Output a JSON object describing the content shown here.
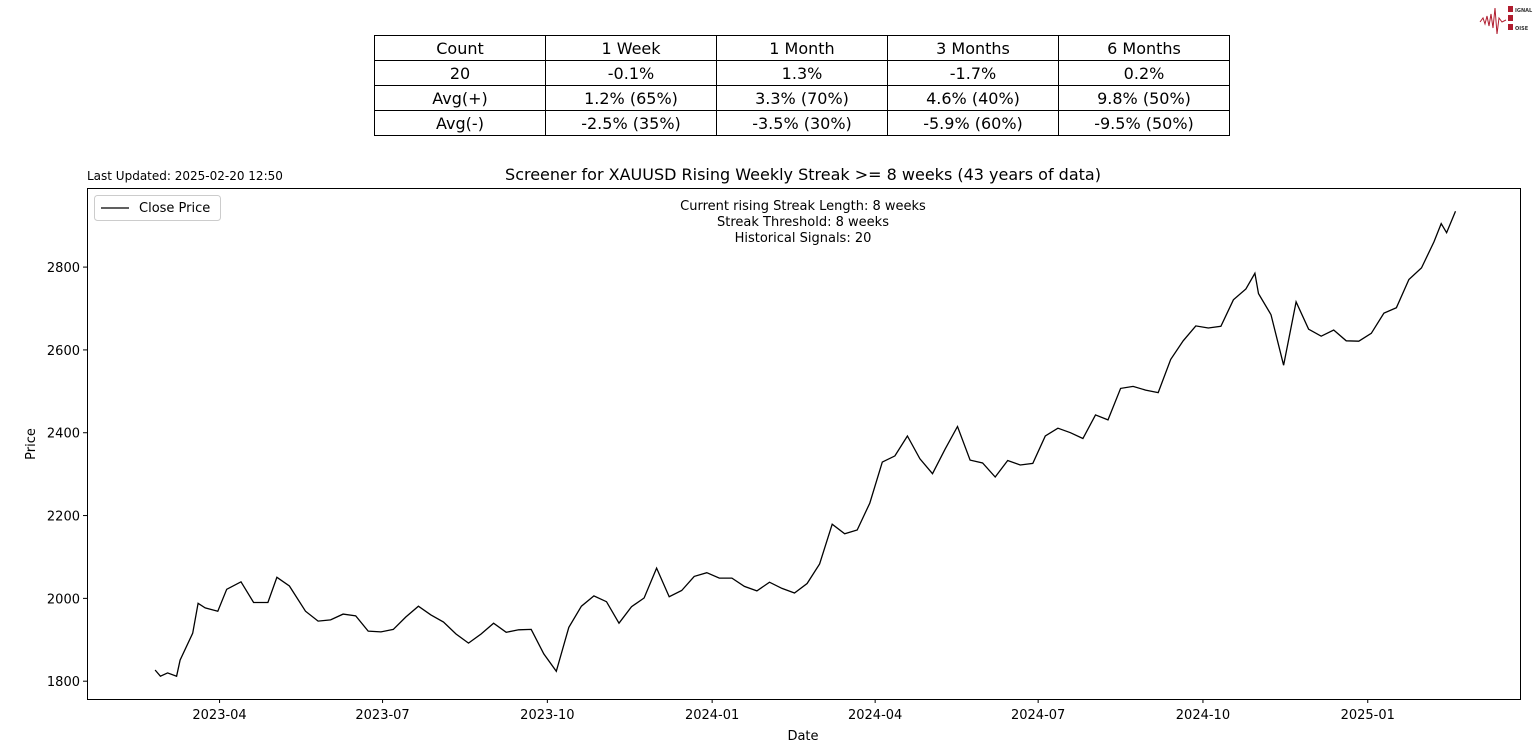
{
  "logo": {
    "text": "SIGNAL 2 NOISE",
    "color": "#b01c2e"
  },
  "table": {
    "rows": [
      [
        "Count",
        "1 Week",
        "1 Month",
        "3 Months",
        "6 Months"
      ],
      [
        "20",
        "-0.1%",
        "1.3%",
        "-1.7%",
        "0.2%"
      ],
      [
        "Avg(+)",
        "1.2% (65%)",
        "3.3% (70%)",
        "4.6% (40%)",
        "9.8% (50%)"
      ],
      [
        "Avg(-)",
        "-2.5% (35%)",
        "-3.5% (30%)",
        "-5.9% (60%)",
        "-9.5% (50%)"
      ]
    ]
  },
  "last_updated": "Last Updated: 2025-02-20 12:50",
  "chart_data": {
    "type": "line",
    "title": "Screener for XAUUSD Rising Weekly Streak >= 8 weeks (43 years of data)",
    "xlabel": "Date",
    "ylabel": "Price",
    "annotations": [
      "Current rising Streak Length: 8 weeks",
      "Streak Threshold: 8 weeks",
      "Historical Signals: 20"
    ],
    "legend": {
      "placement": "top-left",
      "entries": [
        "Close Price"
      ]
    },
    "grid": false,
    "line_color": "#000000",
    "xlim": [
      "2023-01-17",
      "2025-03-27"
    ],
    "ylim": [
      1757,
      2991
    ],
    "xticks": [
      "2023-04",
      "2023-07",
      "2023-10",
      "2024-01",
      "2024-04",
      "2024-07",
      "2024-10",
      "2025-01"
    ],
    "yticks": [
      1800,
      2000,
      2200,
      2400,
      2600,
      2800
    ],
    "series": [
      {
        "name": "Close Price",
        "x": [
          "2023-02-24",
          "2023-02-27",
          "2023-03-03",
          "2023-03-08",
          "2023-03-10",
          "2023-03-17",
          "2023-03-20",
          "2023-03-24",
          "2023-03-31",
          "2023-04-05",
          "2023-04-13",
          "2023-04-20",
          "2023-04-28",
          "2023-05-03",
          "2023-05-10",
          "2023-05-19",
          "2023-05-26",
          "2023-06-02",
          "2023-06-09",
          "2023-06-16",
          "2023-06-23",
          "2023-06-30",
          "2023-07-07",
          "2023-07-14",
          "2023-07-21",
          "2023-07-28",
          "2023-08-04",
          "2023-08-11",
          "2023-08-18",
          "2023-08-25",
          "2023-09-01",
          "2023-09-08",
          "2023-09-15",
          "2023-09-22",
          "2023-09-29",
          "2023-10-06",
          "2023-10-13",
          "2023-10-20",
          "2023-10-27",
          "2023-11-03",
          "2023-11-10",
          "2023-11-17",
          "2023-11-24",
          "2023-12-01",
          "2023-12-08",
          "2023-12-15",
          "2023-12-22",
          "2023-12-29",
          "2024-01-05",
          "2024-01-12",
          "2024-01-19",
          "2024-01-26",
          "2024-02-02",
          "2024-02-09",
          "2024-02-16",
          "2024-02-23",
          "2024-03-01",
          "2024-03-08",
          "2024-03-15",
          "2024-03-22",
          "2024-03-29",
          "2024-04-05",
          "2024-04-12",
          "2024-04-19",
          "2024-04-26",
          "2024-05-03",
          "2024-05-10",
          "2024-05-17",
          "2024-05-24",
          "2024-05-31",
          "2024-06-07",
          "2024-06-14",
          "2024-06-21",
          "2024-06-28",
          "2024-07-05",
          "2024-07-12",
          "2024-07-19",
          "2024-07-26",
          "2024-08-02",
          "2024-08-09",
          "2024-08-16",
          "2024-08-23",
          "2024-08-30",
          "2024-09-06",
          "2024-09-13",
          "2024-09-20",
          "2024-09-27",
          "2024-10-04",
          "2024-10-11",
          "2024-10-18",
          "2024-10-25",
          "2024-10-30",
          "2024-11-01",
          "2024-11-08",
          "2024-11-15",
          "2024-11-22",
          "2024-11-29",
          "2024-12-06",
          "2024-12-13",
          "2024-12-20",
          "2024-12-27",
          "2025-01-03",
          "2025-01-10",
          "2025-01-17",
          "2025-01-24",
          "2025-01-31",
          "2025-02-07",
          "2025-02-11",
          "2025-02-14",
          "2025-02-19"
        ],
        "values": [
          1827,
          1812,
          1820,
          1812,
          1851,
          1916,
          1988,
          1977,
          1969,
          2022,
          2040,
          1990,
          1990,
          2051,
          2030,
          1969,
          1945,
          1948,
          1962,
          1958,
          1921,
          1919,
          1925,
          1955,
          1981,
          1960,
          1943,
          1914,
          1892,
          1914,
          1940,
          1918,
          1924,
          1925,
          1866,
          1824,
          1930,
          1981,
          2006,
          1992,
          1940,
          1980,
          2001,
          2073,
          2004,
          2019,
          2053,
          2062,
          2049,
          2049,
          2029,
          2018,
          2039,
          2024,
          2013,
          2036,
          2083,
          2179,
          2156,
          2165,
          2230,
          2329,
          2344,
          2392,
          2337,
          2301,
          2360,
          2415,
          2334,
          2327,
          2293,
          2333,
          2322,
          2326,
          2392,
          2411,
          2400,
          2386,
          2443,
          2431,
          2507,
          2512,
          2503,
          2497,
          2577,
          2622,
          2658,
          2653,
          2657,
          2721,
          2747,
          2785,
          2736,
          2685,
          2563,
          2716,
          2650,
          2633,
          2648,
          2622,
          2621,
          2640,
          2689,
          2702,
          2770,
          2798,
          2861,
          2905,
          2883,
          2935
        ]
      }
    ]
  }
}
